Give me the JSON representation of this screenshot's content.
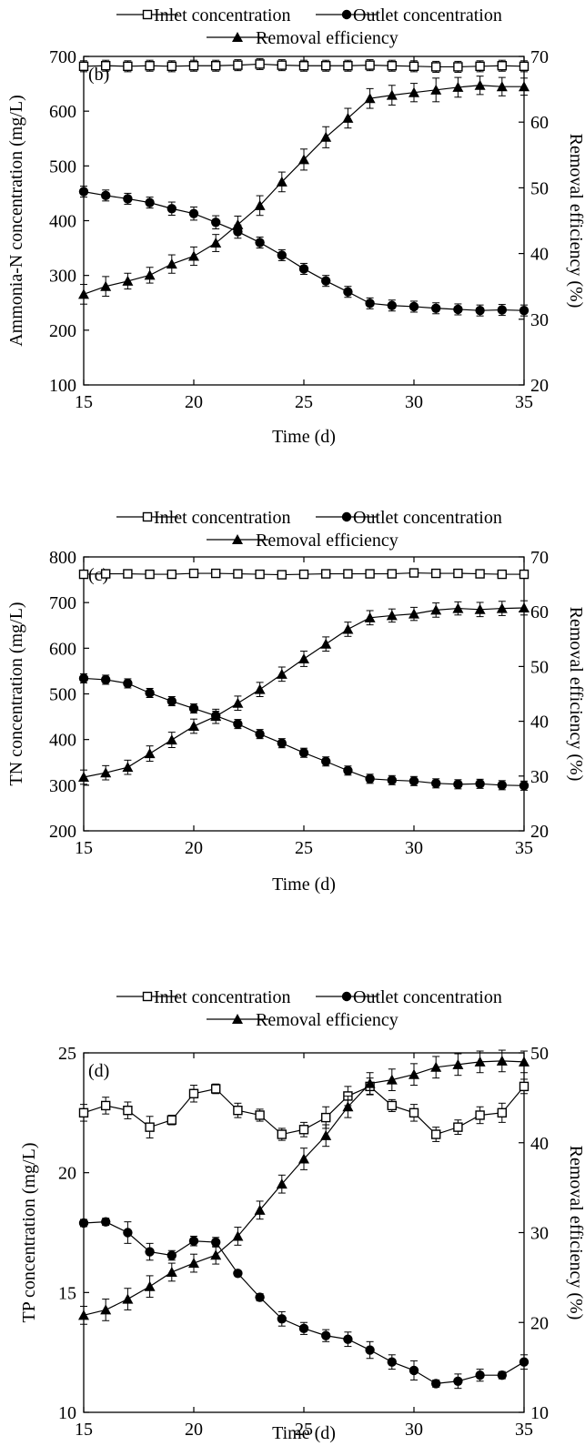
{
  "chart_data": [
    {
      "type": "line",
      "panel_label": "(b)",
      "xlabel": "Time (d)",
      "ylabel": "Ammonia-N concentration (mg/L)",
      "y2label": "Removal efficiency (%)",
      "xlim": [
        15,
        35
      ],
      "ylim": [
        100,
        700
      ],
      "y2lim": [
        20,
        70
      ],
      "xticks": [
        15,
        20,
        25,
        30,
        35
      ],
      "yticks": [
        100,
        200,
        300,
        400,
        500,
        600,
        700
      ],
      "y2ticks": [
        20,
        30,
        40,
        50,
        60,
        70
      ],
      "legend_position": "top",
      "x": [
        15,
        16,
        17,
        18,
        19,
        20,
        21,
        22,
        23,
        24,
        25,
        26,
        27,
        28,
        29,
        30,
        31,
        32,
        33,
        34,
        35
      ],
      "series": [
        {
          "name": "Inlet concentration",
          "axis": "left",
          "marker": "open-square",
          "values": [
            682,
            683,
            682,
            683,
            682,
            683,
            683,
            684,
            686,
            684,
            683,
            683,
            683,
            684,
            683,
            682,
            681,
            681,
            682,
            683,
            682
          ],
          "errors": [
            10,
            10,
            10,
            10,
            10,
            10,
            10,
            10,
            10,
            10,
            10,
            10,
            10,
            10,
            10,
            10,
            10,
            10,
            10,
            10,
            10
          ]
        },
        {
          "name": "Outlet concentration",
          "axis": "left",
          "marker": "filled-circle",
          "values": [
            453,
            446,
            440,
            433,
            422,
            413,
            397,
            380,
            360,
            337,
            312,
            290,
            270,
            249,
            245,
            243,
            240,
            238,
            236,
            237,
            236
          ],
          "errors": [
            10,
            10,
            10,
            10,
            12,
            12,
            12,
            12,
            10,
            10,
            10,
            10,
            10,
            10,
            10,
            10,
            10,
            10,
            10,
            10,
            10
          ]
        },
        {
          "name": "Removal efficiency",
          "axis": "right",
          "marker": "filled-triangle",
          "values": [
            33.8,
            35.0,
            35.8,
            36.7,
            38.4,
            39.6,
            41.6,
            44.4,
            47.3,
            50.9,
            54.3,
            57.7,
            60.6,
            63.6,
            64.1,
            64.5,
            64.9,
            65.3,
            65.6,
            65.4,
            65.4
          ],
          "errors": [
            1.5,
            1.5,
            1.2,
            1.2,
            1.4,
            1.4,
            1.3,
            1.3,
            1.5,
            1.5,
            1.6,
            1.6,
            1.5,
            1.5,
            1.5,
            1.4,
            1.8,
            1.5,
            1.4,
            1.4,
            1.3
          ]
        }
      ]
    },
    {
      "type": "line",
      "panel_label": "(c)",
      "xlabel": "Time (d)",
      "ylabel": "TN concentration (mg/L)",
      "y2label": "Removal efficiency (%)",
      "xlim": [
        15,
        35
      ],
      "ylim": [
        200,
        800
      ],
      "y2lim": [
        20,
        70
      ],
      "xticks": [
        15,
        20,
        25,
        30,
        35
      ],
      "yticks": [
        200,
        300,
        400,
        500,
        600,
        700,
        800
      ],
      "y2ticks": [
        20,
        30,
        40,
        50,
        60,
        70
      ],
      "legend_position": "top",
      "x": [
        15,
        16,
        17,
        18,
        19,
        20,
        21,
        22,
        23,
        24,
        25,
        26,
        27,
        28,
        29,
        30,
        31,
        32,
        33,
        34,
        35
      ],
      "series": [
        {
          "name": "Inlet concentration",
          "axis": "left",
          "marker": "open-square",
          "values": [
            762,
            763,
            763,
            762,
            762,
            764,
            764,
            763,
            762,
            761,
            762,
            763,
            763,
            763,
            763,
            765,
            764,
            764,
            763,
            762,
            762
          ],
          "errors": [
            8,
            8,
            8,
            8,
            8,
            8,
            8,
            8,
            8,
            8,
            8,
            8,
            8,
            8,
            8,
            8,
            8,
            8,
            8,
            8,
            8
          ]
        },
        {
          "name": "Outlet concentration",
          "axis": "left",
          "marker": "filled-circle",
          "values": [
            534,
            531,
            523,
            502,
            484,
            468,
            452,
            434,
            412,
            392,
            371,
            352,
            332,
            314,
            311,
            309,
            304,
            302,
            303,
            300,
            299
          ],
          "errors": [
            10,
            10,
            10,
            10,
            10,
            10,
            10,
            10,
            10,
            10,
            10,
            10,
            10,
            10,
            10,
            10,
            10,
            10,
            10,
            10,
            10
          ]
        },
        {
          "name": "Removal efficiency",
          "axis": "right",
          "marker": "filled-triangle",
          "values": [
            29.8,
            30.6,
            31.6,
            34.1,
            36.6,
            39.1,
            40.9,
            43.3,
            45.8,
            48.6,
            51.4,
            54.1,
            56.8,
            58.9,
            59.3,
            59.6,
            60.3,
            60.6,
            60.4,
            60.6,
            60.7
          ],
          "errors": [
            1.3,
            1.3,
            1.3,
            1.4,
            1.4,
            1.3,
            1.3,
            1.3,
            1.3,
            1.3,
            1.4,
            1.3,
            1.3,
            1.3,
            1.2,
            1.2,
            1.3,
            1.2,
            1.3,
            1.3,
            1.3
          ]
        }
      ]
    },
    {
      "type": "line",
      "panel_label": "(d)",
      "xlabel": "Time (d)",
      "ylabel": "TP concentration (mg/L)",
      "y2label": "Removal efficiency (%)",
      "xlim": [
        15,
        35
      ],
      "ylim": [
        10,
        25
      ],
      "y2lim": [
        10,
        50
      ],
      "xticks": [
        15,
        20,
        25,
        30,
        35
      ],
      "yticks": [
        10,
        15,
        20,
        25
      ],
      "y2ticks": [
        10,
        20,
        30,
        40,
        50
      ],
      "legend_position": "top",
      "x": [
        15,
        16,
        17,
        18,
        19,
        20,
        21,
        22,
        23,
        24,
        25,
        26,
        27,
        28,
        29,
        30,
        31,
        32,
        33,
        34,
        35
      ],
      "series": [
        {
          "name": "Inlet concentration",
          "axis": "left",
          "marker": "open-square",
          "values": [
            22.5,
            22.8,
            22.6,
            21.9,
            22.2,
            23.3,
            23.5,
            22.6,
            22.4,
            21.6,
            21.8,
            22.3,
            23.2,
            23.6,
            22.8,
            22.5,
            21.6,
            21.9,
            22.4,
            22.5,
            23.6
          ],
          "errors": [
            0.35,
            0.35,
            0.35,
            0.45,
            0.2,
            0.35,
            0.2,
            0.3,
            0.25,
            0.25,
            0.3,
            0.45,
            0.4,
            0.35,
            0.25,
            0.35,
            0.3,
            0.3,
            0.35,
            0.4,
            0.3
          ]
        },
        {
          "name": "Outlet concentration",
          "axis": "left",
          "marker": "filled-circle",
          "values": [
            17.9,
            17.95,
            17.5,
            16.7,
            16.55,
            17.15,
            17.1,
            15.8,
            14.8,
            13.9,
            13.5,
            13.2,
            13.05,
            12.6,
            12.1,
            11.75,
            11.2,
            11.3,
            11.55,
            11.55,
            12.1
          ],
          "errors": [
            0.15,
            0.15,
            0.45,
            0.35,
            0.2,
            0.2,
            0.2,
            0.1,
            0.15,
            0.3,
            0.25,
            0.25,
            0.3,
            0.35,
            0.3,
            0.4,
            0.15,
            0.3,
            0.25,
            0.15,
            0.3
          ]
        },
        {
          "name": "Removal efficiency",
          "axis": "right",
          "marker": "filled-triangle",
          "values": [
            20.8,
            21.4,
            22.6,
            24.0,
            25.6,
            26.6,
            27.5,
            29.6,
            32.5,
            35.4,
            38.2,
            40.8,
            44.0,
            46.6,
            47.0,
            47.6,
            48.4,
            48.7,
            49.0,
            49.1,
            49.0
          ],
          "errors": [
            1.0,
            1.2,
            1.2,
            1.2,
            1.0,
            1.0,
            1.0,
            1.0,
            1.0,
            1.0,
            1.2,
            1.2,
            1.2,
            1.2,
            1.2,
            1.2,
            1.2,
            1.2,
            1.2,
            1.2,
            1.2
          ]
        }
      ]
    }
  ]
}
